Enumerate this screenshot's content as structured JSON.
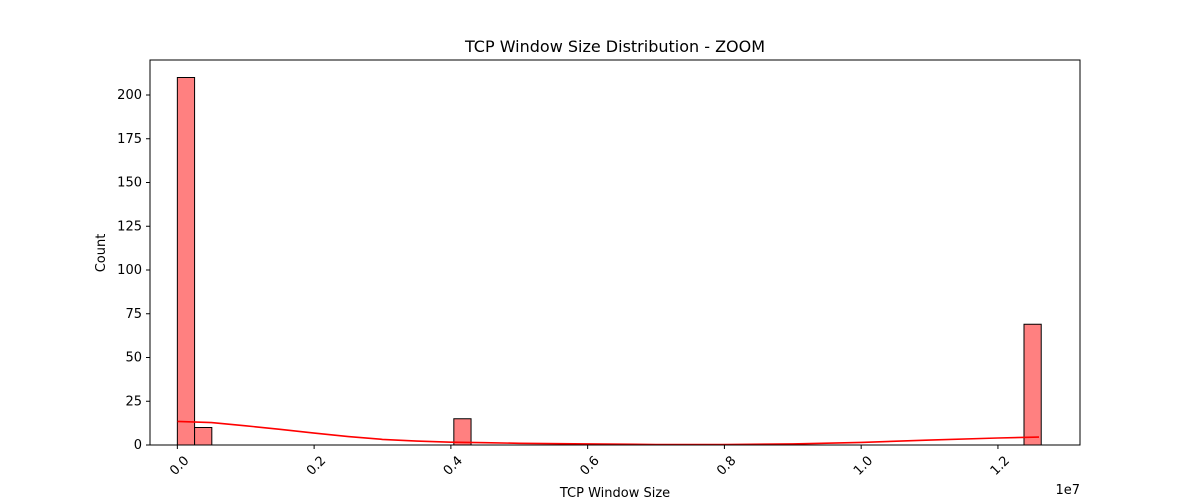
{
  "chart_data": {
    "type": "bar",
    "title": "TCP Window Size Distribution - ZOOM",
    "xlabel": "TCP Window Size",
    "ylabel": "Count",
    "x_offset_label": "1e7",
    "xlim": [
      -0.04,
      1.32
    ],
    "ylim": [
      0,
      220
    ],
    "x_ticks": [
      0.0,
      0.2,
      0.4,
      0.6,
      0.8,
      1.0,
      1.2
    ],
    "x_tick_labels": [
      "0.0",
      "0.2",
      "0.4",
      "0.6",
      "0.8",
      "1.0",
      "1.2"
    ],
    "y_ticks": [
      0,
      25,
      50,
      75,
      100,
      125,
      150,
      175,
      200
    ],
    "y_tick_labels": [
      "0",
      "25",
      "50",
      "75",
      "100",
      "125",
      "150",
      "175",
      "200"
    ],
    "bin_width": 0.0252,
    "bars": [
      {
        "x_start": 0.0,
        "value": 210
      },
      {
        "x_start": 0.0252,
        "value": 10
      },
      {
        "x_start": 0.4043,
        "value": 15
      },
      {
        "x_start": 1.2381,
        "value": 69
      }
    ],
    "kde": {
      "x": [
        0.0,
        0.05,
        0.1,
        0.15,
        0.2,
        0.25,
        0.3,
        0.35,
        0.4,
        0.45,
        0.5,
        0.6,
        0.7,
        0.8,
        0.9,
        1.0,
        1.1,
        1.2,
        1.26
      ],
      "y": [
        13.5,
        12.8,
        11.0,
        9.0,
        6.8,
        4.8,
        3.2,
        2.2,
        1.6,
        1.3,
        1.0,
        0.6,
        0.3,
        0.2,
        0.6,
        1.5,
        2.8,
        4.0,
        4.5
      ]
    },
    "bar_color": "#ff8080",
    "bar_edge_color": "#000000",
    "kde_color": "#ff0000",
    "grid": false,
    "legend": "none"
  }
}
